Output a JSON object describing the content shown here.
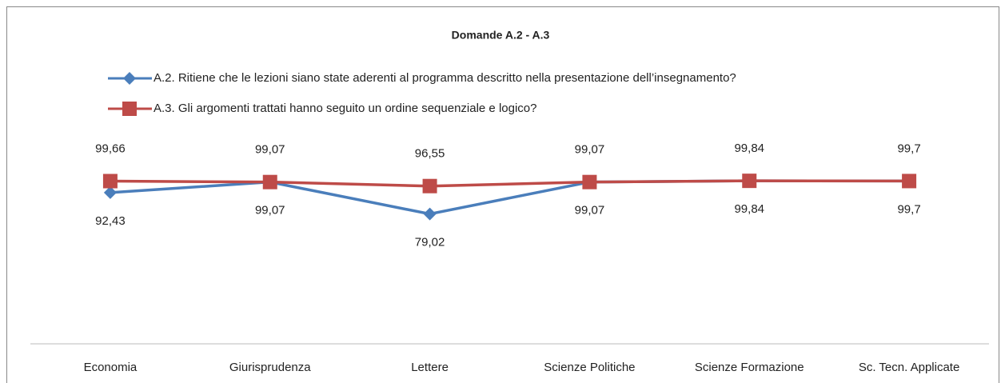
{
  "chart_data": {
    "type": "line",
    "title": "Domande A.2 - A.3",
    "categories": [
      "Economia",
      "Giurisprudenza",
      "Lettere",
      "Scienze Politiche",
      "Scienze Formazione",
      "Sc. Tecn. Applicate"
    ],
    "ylim": [
      0,
      120
    ],
    "series": [
      {
        "name": "A.2. Ritiene che le lezioni siano state aderenti al programma descritto nella presentazione dell’insegnamento?",
        "color": "#4a7ebb",
        "marker": "diamond",
        "values": [
          92.43,
          99.07,
          79.02,
          99.07,
          99.84,
          99.7
        ],
        "value_labels": [
          "92,43",
          "99,07",
          "79,02",
          "99,07",
          "99,84",
          "99,7"
        ]
      },
      {
        "name": "A.3. Gli argomenti trattati hanno seguito un ordine sequenziale e logico?",
        "color": "#be4b48",
        "marker": "square",
        "values": [
          99.66,
          99.07,
          96.55,
          99.07,
          99.84,
          99.7
        ],
        "value_labels": [
          "99,66",
          "99,07",
          "96,55",
          "99,07",
          "99,84",
          "99,7"
        ]
      }
    ]
  }
}
